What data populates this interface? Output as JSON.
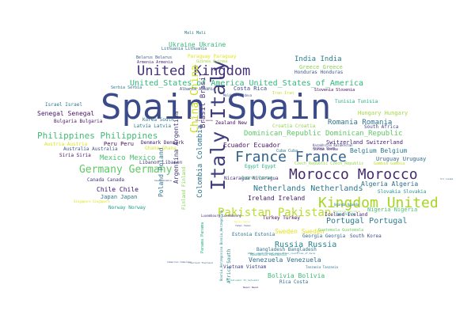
{
  "words": [
    {
      "text": "Spain Spain",
      "color": "#3b4a88"
    },
    {
      "text": "Italy Italy",
      "color": "#3f3f7e"
    },
    {
      "text": "Morocco Morocco",
      "color": "#452a6b"
    },
    {
      "text": "France France",
      "color": "#33638d"
    },
    {
      "text": "Kingdom United",
      "color": "#a6d622"
    },
    {
      "text": "United Kingdom",
      "color": "#46307b"
    },
    {
      "text": "Pakistan Pakistan",
      "color": "#b8de28"
    },
    {
      "text": "Germany Germany",
      "color": "#5ec962"
    },
    {
      "text": "China China",
      "color": "#c8e020"
    },
    {
      "text": "Philippines Philippines",
      "color": "#3fbc73"
    },
    {
      "text": "United_States_of_America United_States_of_America",
      "color": "#31b57b"
    },
    {
      "text": "Dominican_Republic Dominican_Republic",
      "color": "#5cc863"
    },
    {
      "text": "Netherlands Netherlands",
      "color": "#2a788e"
    },
    {
      "text": "Russia Russia",
      "color": "#26828e"
    },
    {
      "text": "Portugal Portugal",
      "color": "#2a7b8e"
    },
    {
      "text": "Romania Romania",
      "color": "#2c728e"
    },
    {
      "text": "India India",
      "color": "#287d8e"
    },
    {
      "text": "Ireland Ireland",
      "color": "#3a1a62"
    },
    {
      "text": "Chile Chile",
      "color": "#3b0f70"
    },
    {
      "text": "Venezuela Venezuela",
      "color": "#2c6c8e"
    },
    {
      "text": "Mexico Mexico",
      "color": "#4ac16d"
    },
    {
      "text": "Colombia Colombia",
      "color": "#2b748e"
    },
    {
      "text": "Argentina Argentina",
      "color": "#3f3c7a"
    },
    {
      "text": "Brasil Brasil",
      "color": "#46317e"
    },
    {
      "text": "Poland Poland",
      "color": "#2d708e"
    },
    {
      "text": "Ecuador Ecuador",
      "color": "#471164"
    },
    {
      "text": "Algeria Algeria",
      "color": "#2a6e8e"
    },
    {
      "text": "Belgium Belgium",
      "color": "#2a788e"
    },
    {
      "text": "Bolivia Bolivia",
      "color": "#3cbb75"
    },
    {
      "text": "Switzerland Switzerland",
      "color": "#482173"
    },
    {
      "text": "Uruguay Uruguay",
      "color": "#31688e"
    },
    {
      "text": "Japan Japan",
      "color": "#2b758e"
    },
    {
      "text": "Senegal Senegal",
      "color": "#471466"
    },
    {
      "text": "Sweden Sweden",
      "color": "#e5e419"
    },
    {
      "text": "Hungary Hungary",
      "color": "#a0da39"
    },
    {
      "text": "Peru Peru",
      "color": "#440d54"
    },
    {
      "text": "Greece Greece",
      "color": "#86d549"
    },
    {
      "text": "Ukraine Ukraine",
      "color": "#35b779"
    },
    {
      "text": "Costa Rica",
      "color": "#3e4989"
    },
    {
      "text": "Turkey Turkey",
      "color": "#440154"
    },
    {
      "text": "Georgia Georgia",
      "color": "#32648e"
    },
    {
      "text": "Nigeria Nigeria",
      "color": "#46c06f"
    },
    {
      "text": "Bangladesh Bangladesh",
      "color": "#2c738e"
    },
    {
      "text": "Rica Costa",
      "color": "#2e6d8e"
    },
    {
      "text": "Estonia Estonia",
      "color": "#2d708e"
    },
    {
      "text": "Latvia Latvia",
      "color": "#2a788e"
    },
    {
      "text": "Denmark Denmark",
      "color": "#3d1466"
    },
    {
      "text": "Australia Australia",
      "color": "#39568c"
    },
    {
      "text": "Israel Israel",
      "color": "#2a788e"
    },
    {
      "text": "Bulgaria Bulgaria",
      "color": "#481769"
    },
    {
      "text": "Korea South",
      "color": "#2c718e"
    },
    {
      "text": "Libanon Libanon",
      "color": "#433d84"
    },
    {
      "text": "Canada Canada",
      "color": "#453882"
    },
    {
      "text": "Zealand New",
      "color": "#460b5e"
    },
    {
      "text": "Croatia Croatia",
      "color": "#8ed645"
    },
    {
      "text": "Egypt Egypt",
      "color": "#26ad81"
    },
    {
      "text": "Nicaragua Nicaragua",
      "color": "#482878"
    },
    {
      "text": "Iceland Iceland",
      "color": "#481a6c"
    },
    {
      "text": "Slovakia Slovakia",
      "color": "#21918c"
    },
    {
      "text": "Norway Norway",
      "color": "#1e9b8a"
    },
    {
      "text": "Ghana Ghana",
      "color": "#d8e219"
    },
    {
      "text": "Finland Finland",
      "color": "#7fd34e"
    },
    {
      "text": "South Korea",
      "color": "#3e4a89"
    },
    {
      "text": "Tunisia Tunisia",
      "color": "#22a884"
    },
    {
      "text": "South Africa",
      "color": "#404688"
    },
    {
      "text": "Africa South",
      "color": "#25858e"
    },
    {
      "text": "Honduras Honduras",
      "color": "#39568c"
    },
    {
      "text": "Guatemala Guatemala",
      "color": "#6ccd5a"
    },
    {
      "text": "Paraguay Paraguay",
      "color": "#e3e418"
    },
    {
      "text": "Guinea Guinea",
      "color": "#9fda3a"
    },
    {
      "text": "Belarus Belarus",
      "color": "#355f8d"
    },
    {
      "text": "Armenia Armenia",
      "color": "#482878"
    },
    {
      "text": "Lithuania Lithuania",
      "color": "#31688e"
    },
    {
      "text": "Serbia Serbia",
      "color": "#2a788e"
    },
    {
      "text": "Albania Albania",
      "color": "#404688"
    },
    {
      "text": "Slovenia Slovenia",
      "color": "#440154"
    },
    {
      "text": "Iran Iran",
      "color": "#bddf26"
    },
    {
      "text": "Austria Austria",
      "color": "#dde318"
    },
    {
      "text": "Siria Siria",
      "color": "#471063"
    },
    {
      "text": "Czech_Republic Czech_Republic",
      "color": "#90d743"
    },
    {
      "text": "Gambia Gambia",
      "color": "#c2df23"
    },
    {
      "text": "Panama Panama",
      "color": "#27ad81"
    },
    {
      "text": "Mali Mali",
      "color": "#2a788e"
    },
    {
      "text": "Moldova Moldova",
      "color": "#3b528b"
    },
    {
      "text": "Kazakhstan Kazakhstan",
      "color": "#414487"
    },
    {
      "text": "Arabia Saudi",
      "color": "#482878"
    },
    {
      "text": "Saudi Arabia",
      "color": "#3e4a89"
    },
    {
      "text": "Sierra Leone",
      "color": "#440154"
    },
    {
      "text": "Cuba Cuba",
      "color": "#2a788e"
    },
    {
      "text": "Jordan Jordan",
      "color": "#482173"
    },
    {
      "text": "Cyprus Cyprus",
      "color": "#2fb47c"
    },
    {
      "text": "Kenya Kenya",
      "color": "#fde725"
    },
    {
      "text": "Macedonia Macedonia",
      "color": "#1f988b"
    },
    {
      "text": "Cameroon Cameroon",
      "color": "#3b528b"
    },
    {
      "text": "Tanzania Tanzania",
      "color": "#2c728e"
    },
    {
      "text": "Nepal Nepal",
      "color": "#472c7a"
    },
    {
      "text": "Uganda Uganda",
      "color": "#287c8e"
    },
    {
      "text": "Yemen Yemen",
      "color": "#3b528b"
    },
    {
      "text": "Singapore Singapore",
      "color": "#dde318"
    },
    {
      "text": "Sri Lanka",
      "color": "#2e6e8e"
    },
    {
      "text": "Capo Verde",
      "color": "#22a785"
    },
    {
      "text": "Other_countries_of_Asia Other_countries_of_Asia",
      "color": "#2a788e"
    },
    {
      "text": "Bosnia_Herzegovina Bosnia_Herzegovina",
      "color": "#26818e"
    },
    {
      "text": "Luxembourg Luxembourg",
      "color": "#482878"
    },
    {
      "text": "Mauritius Mauritius",
      "color": "#7ad151"
    },
    {
      "text": "Thailand Thailand",
      "color": "#32658e"
    },
    {
      "text": "Vietnam Vietnam",
      "color": "#404688"
    },
    {
      "text": "El_Salvador El_Salvador",
      "color": "#1f9e89"
    },
    {
      "text": "Azerbaijan Azerbaijan",
      "color": "#31b57b"
    }
  ]
}
